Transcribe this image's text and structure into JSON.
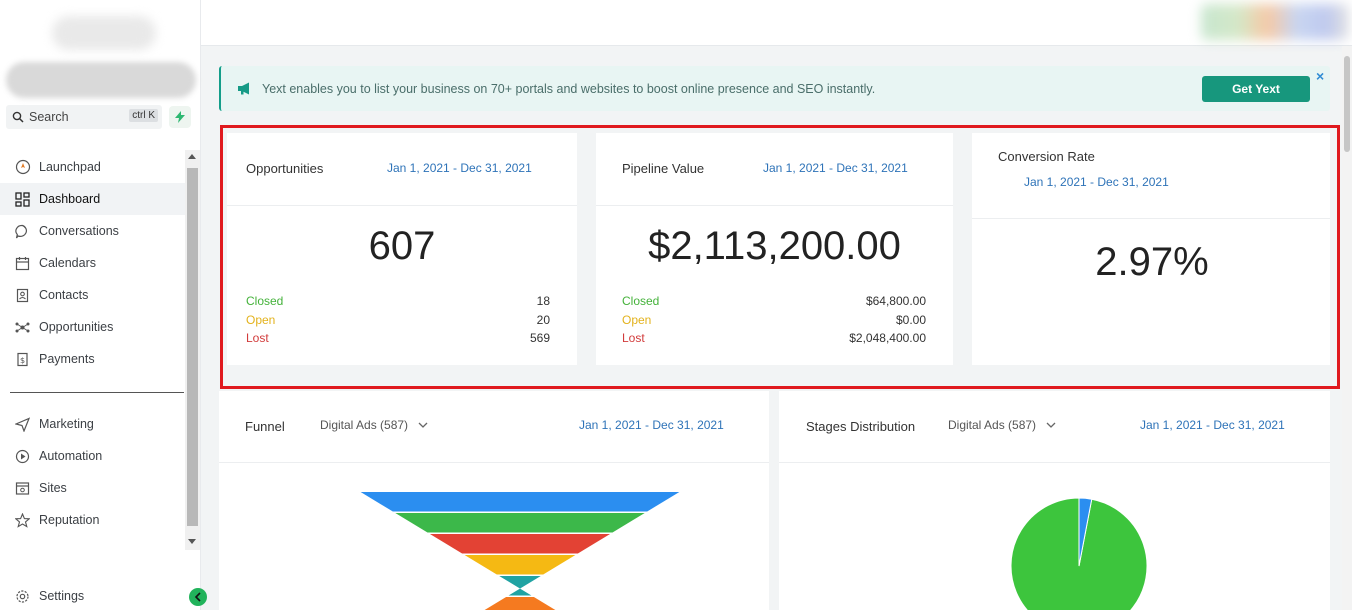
{
  "sidebar": {
    "search_label": "Search",
    "search_shortcut": "ctrl K",
    "items": [
      {
        "label": "Launchpad",
        "icon": "launchpad-icon"
      },
      {
        "label": "Dashboard",
        "icon": "dashboard-icon"
      },
      {
        "label": "Conversations",
        "icon": "chat-icon"
      },
      {
        "label": "Calendars",
        "icon": "calendar-icon"
      },
      {
        "label": "Contacts",
        "icon": "contacts-icon"
      },
      {
        "label": "Opportunities",
        "icon": "opportunities-icon"
      },
      {
        "label": "Payments",
        "icon": "payments-icon"
      }
    ],
    "items2": [
      {
        "label": "Marketing",
        "icon": "send-icon"
      },
      {
        "label": "Automation",
        "icon": "automation-icon"
      },
      {
        "label": "Sites",
        "icon": "sites-icon"
      },
      {
        "label": "Reputation",
        "icon": "star-icon"
      }
    ],
    "settings_label": "Settings",
    "active": "Dashboard"
  },
  "banner": {
    "text": "Yext enables you to list your business on 70+ portals and websites to boost online presence and SEO instantly.",
    "button_label": "Get Yext",
    "close_label": "×"
  },
  "stats": {
    "opportunities": {
      "title": "Opportunities",
      "date_range": "Jan 1, 2021 - Dec 31, 2021",
      "total": "607",
      "closed_label": "Closed",
      "closed": "18",
      "open_label": "Open",
      "open": "20",
      "lost_label": "Lost",
      "lost": "569"
    },
    "pipeline": {
      "title": "Pipeline Value",
      "date_range": "Jan 1, 2021 - Dec 31, 2021",
      "total": "$2,113,200.00",
      "closed_label": "Closed",
      "closed": "$64,800.00",
      "open_label": "Open",
      "open": "$0.00",
      "lost_label": "Lost",
      "lost": "$2,048,400.00"
    },
    "conversion": {
      "title": "Conversion Rate",
      "date_range": "Jan 1, 2021 - Dec 31, 2021",
      "value": "2.97%"
    }
  },
  "funnel": {
    "title": "Funnel",
    "select": "Digital Ads (587)",
    "date_range": "Jan 1, 2021 - Dec 31, 2021",
    "bands": [
      "#2b8ef0",
      "#3cb84a",
      "#e34234",
      "#f5b913",
      "#21a3a3",
      "#f57a20"
    ]
  },
  "stages": {
    "title": "Stages Distribution",
    "select": "Digital Ads (587)",
    "date_range": "Jan 1, 2021 - Dec 31, 2021",
    "slices": [
      {
        "fraction": 0.97,
        "color": "#3dc53d"
      },
      {
        "fraction": 0.03,
        "color": "#2b8ef0"
      }
    ]
  },
  "colors": {
    "accent": "#17977d",
    "link": "#2e73b8",
    "highlight": "#e0191e"
  }
}
